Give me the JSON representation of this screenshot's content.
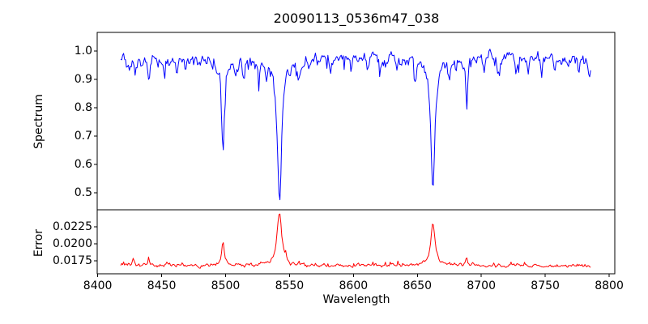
{
  "figure": {
    "background": "#ffffff",
    "axes_color": "#000000"
  },
  "chart_data": {
    "type": "line",
    "title": "20090113_0536m47_038",
    "xlabel": "Wavelength",
    "xlim": [
      8399.6,
      8804.4
    ],
    "xticks": [
      8400,
      8450,
      8500,
      8550,
      8600,
      8650,
      8700,
      8750,
      8800
    ],
    "xtick_labels": [
      "8400",
      "8450",
      "8500",
      "8550",
      "8600",
      "8650",
      "8700",
      "8750",
      "8800"
    ],
    "data_x_start": 8418,
    "data_x_end": 8786,
    "sampling_step": 0.75,
    "panels": [
      {
        "name": "spectrum",
        "ylabel": "Spectrum",
        "line_color": "#0000ff",
        "ylim": [
          0.44,
          1.065
        ],
        "yticks": [
          1.0,
          0.9,
          0.8,
          0.7,
          0.6,
          0.5
        ],
        "ytick_labels": [
          "1.0",
          "0.9",
          "0.8",
          "0.7",
          "0.6",
          "0.5"
        ],
        "continuum": 0.975,
        "noise_sigma": 0.0095,
        "spike_probability": 0.1,
        "spike_depth_max": 0.05,
        "min_clip": 0.46,
        "max_clip": 1.035,
        "absorption_lines": [
          {
            "center": 8498.0,
            "depth": 0.34,
            "width": 1.3
          },
          {
            "center": 8542.1,
            "depth": 0.512,
            "width": 2.0
          },
          {
            "center": 8662.1,
            "depth": 0.478,
            "width": 1.8
          },
          {
            "center": 8688.6,
            "depth": 0.175,
            "width": 0.9
          },
          {
            "center": 8423.0,
            "depth": 0.04,
            "width": 0.8
          },
          {
            "center": 8429.0,
            "depth": 0.05,
            "width": 0.8
          },
          {
            "center": 8440.0,
            "depth": 0.085,
            "width": 0.9
          },
          {
            "center": 8447.0,
            "depth": 0.04,
            "width": 0.7
          },
          {
            "center": 8452.0,
            "depth": 0.04,
            "width": 0.7
          },
          {
            "center": 8462.0,
            "depth": 0.05,
            "width": 0.8
          },
          {
            "center": 8468.5,
            "depth": 0.05,
            "width": 0.8
          },
          {
            "center": 8475.0,
            "depth": 0.04,
            "width": 0.7
          },
          {
            "center": 8489.0,
            "depth": 0.05,
            "width": 0.7
          },
          {
            "center": 8508.0,
            "depth": 0.065,
            "width": 0.9
          },
          {
            "center": 8514.2,
            "depth": 0.055,
            "width": 0.8
          },
          {
            "center": 8518.0,
            "depth": 0.04,
            "width": 0.7
          },
          {
            "center": 8526.0,
            "depth": 0.07,
            "width": 0.9
          },
          {
            "center": 8532.0,
            "depth": 0.05,
            "width": 0.8
          },
          {
            "center": 8557.0,
            "depth": 0.07,
            "width": 0.9
          },
          {
            "center": 8565.0,
            "depth": 0.04,
            "width": 0.7
          },
          {
            "center": 8582.0,
            "depth": 0.05,
            "width": 0.8
          },
          {
            "center": 8598.2,
            "depth": 0.065,
            "width": 0.9
          },
          {
            "center": 8611.0,
            "depth": 0.04,
            "width": 0.7
          },
          {
            "center": 8621.0,
            "depth": 0.05,
            "width": 0.8
          },
          {
            "center": 8634.0,
            "depth": 0.04,
            "width": 0.7
          },
          {
            "center": 8648.5,
            "depth": 0.07,
            "width": 0.9
          },
          {
            "center": 8674.7,
            "depth": 0.06,
            "width": 0.8
          },
          {
            "center": 8680.0,
            "depth": 0.04,
            "width": 0.7
          },
          {
            "center": 8702.0,
            "depth": 0.05,
            "width": 0.8
          },
          {
            "center": 8713.0,
            "depth": 0.05,
            "width": 0.8
          },
          {
            "center": 8727.0,
            "depth": 0.04,
            "width": 0.7
          },
          {
            "center": 8736.5,
            "depth": 0.06,
            "width": 0.8
          },
          {
            "center": 8747.0,
            "depth": 0.04,
            "width": 0.7
          },
          {
            "center": 8757.0,
            "depth": 0.05,
            "width": 0.8
          },
          {
            "center": 8768.0,
            "depth": 0.04,
            "width": 0.7
          },
          {
            "center": 8776.0,
            "depth": 0.05,
            "width": 0.8
          },
          {
            "center": 8784.5,
            "depth": 0.06,
            "width": 0.8
          }
        ]
      },
      {
        "name": "error",
        "ylabel": "Error",
        "line_color": "#ff0000",
        "ylim": [
          0.0156,
          0.025
        ],
        "yticks": [
          0.0225,
          0.02,
          0.0175
        ],
        "ytick_labels": [
          "0.0225",
          "0.0200",
          "0.0175"
        ],
        "baseline": 0.0168,
        "noise_sigma": 0.00012,
        "min_clip": 0.016,
        "max_clip": 0.0246,
        "peaks": [
          {
            "center": 8428.0,
            "height": 0.0011,
            "width": 0.8
          },
          {
            "center": 8440.0,
            "height": 0.0006,
            "width": 0.8
          },
          {
            "center": 8498.0,
            "height": 0.0036,
            "width": 1.3
          },
          {
            "center": 8542.1,
            "height": 0.0078,
            "width": 2.3
          },
          {
            "center": 8662.1,
            "height": 0.0064,
            "width": 2.0
          },
          {
            "center": 8688.6,
            "height": 0.0014,
            "width": 0.9
          }
        ]
      }
    ]
  }
}
